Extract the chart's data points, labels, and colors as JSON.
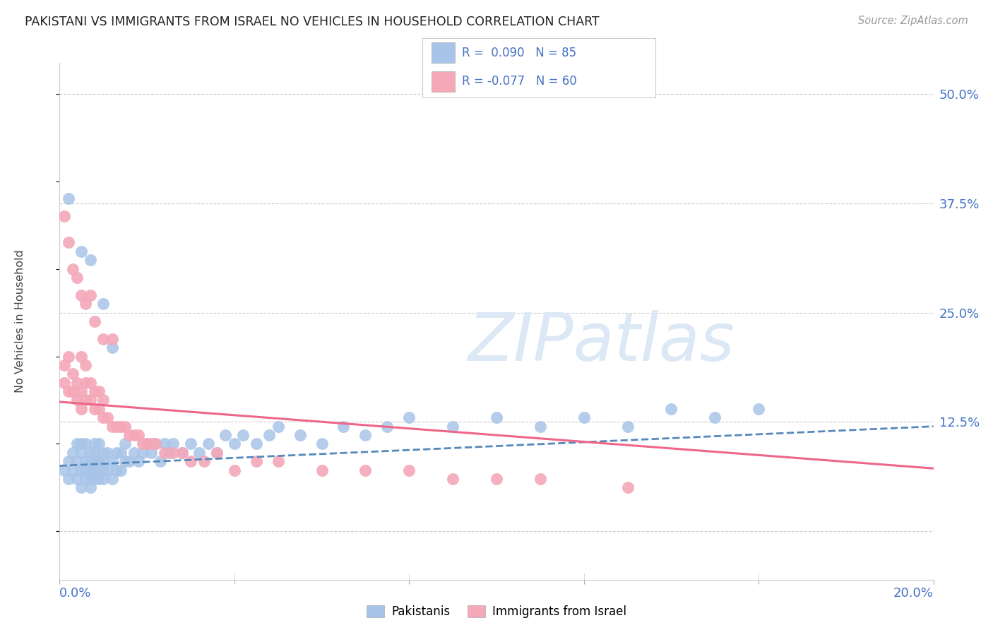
{
  "title": "PAKISTANI VS IMMIGRANTS FROM ISRAEL NO VEHICLES IN HOUSEHOLD CORRELATION CHART",
  "source": "Source: ZipAtlas.com",
  "ylabel": "No Vehicles in Household",
  "ytick_labels": [
    "",
    "12.5%",
    "25.0%",
    "37.5%",
    "50.0%"
  ],
  "ytick_values": [
    0.0,
    0.125,
    0.25,
    0.375,
    0.5
  ],
  "xmin": 0.0,
  "xmax": 0.2,
  "ymin": -0.055,
  "ymax": 0.535,
  "blue_color": "#a8c4e8",
  "pink_color": "#f4a8b8",
  "trendline_blue_color": "#5588bb",
  "trendline_pink_color": "#ee6688",
  "watermark_color": "#dce8f5",
  "grid_color": "#cccccc",
  "title_color": "#222222",
  "axis_label_color": "#4472c4",
  "legend_text_color": "#4472c4",
  "blue_scatter_x": [
    0.001,
    0.002,
    0.002,
    0.003,
    0.003,
    0.004,
    0.004,
    0.004,
    0.005,
    0.005,
    0.005,
    0.005,
    0.006,
    0.006,
    0.006,
    0.006,
    0.007,
    0.007,
    0.007,
    0.007,
    0.007,
    0.008,
    0.008,
    0.008,
    0.008,
    0.008,
    0.009,
    0.009,
    0.009,
    0.009,
    0.01,
    0.01,
    0.01,
    0.01,
    0.011,
    0.011,
    0.012,
    0.012,
    0.013,
    0.013,
    0.014,
    0.014,
    0.015,
    0.015,
    0.016,
    0.017,
    0.018,
    0.019,
    0.02,
    0.021,
    0.022,
    0.023,
    0.024,
    0.025,
    0.026,
    0.028,
    0.03,
    0.032,
    0.034,
    0.036,
    0.038,
    0.04,
    0.042,
    0.045,
    0.048,
    0.05,
    0.055,
    0.06,
    0.065,
    0.07,
    0.075,
    0.08,
    0.09,
    0.1,
    0.11,
    0.12,
    0.13,
    0.14,
    0.15,
    0.16,
    0.002,
    0.005,
    0.007,
    0.01,
    0.012
  ],
  "blue_scatter_y": [
    0.07,
    0.06,
    0.08,
    0.07,
    0.09,
    0.06,
    0.08,
    0.1,
    0.05,
    0.07,
    0.09,
    0.1,
    0.06,
    0.07,
    0.08,
    0.1,
    0.05,
    0.06,
    0.07,
    0.08,
    0.09,
    0.06,
    0.07,
    0.08,
    0.09,
    0.1,
    0.06,
    0.07,
    0.08,
    0.1,
    0.06,
    0.07,
    0.08,
    0.09,
    0.07,
    0.09,
    0.06,
    0.08,
    0.07,
    0.09,
    0.07,
    0.09,
    0.08,
    0.1,
    0.08,
    0.09,
    0.08,
    0.09,
    0.1,
    0.09,
    0.1,
    0.08,
    0.1,
    0.09,
    0.1,
    0.09,
    0.1,
    0.09,
    0.1,
    0.09,
    0.11,
    0.1,
    0.11,
    0.1,
    0.11,
    0.12,
    0.11,
    0.1,
    0.12,
    0.11,
    0.12,
    0.13,
    0.12,
    0.13,
    0.12,
    0.13,
    0.12,
    0.14,
    0.13,
    0.14,
    0.38,
    0.32,
    0.31,
    0.26,
    0.21
  ],
  "pink_scatter_x": [
    0.001,
    0.001,
    0.002,
    0.002,
    0.003,
    0.003,
    0.004,
    0.004,
    0.005,
    0.005,
    0.005,
    0.006,
    0.006,
    0.006,
    0.007,
    0.007,
    0.008,
    0.008,
    0.009,
    0.009,
    0.01,
    0.01,
    0.011,
    0.012,
    0.013,
    0.014,
    0.015,
    0.016,
    0.017,
    0.018,
    0.019,
    0.02,
    0.021,
    0.022,
    0.024,
    0.026,
    0.028,
    0.03,
    0.033,
    0.036,
    0.04,
    0.045,
    0.05,
    0.06,
    0.07,
    0.08,
    0.09,
    0.1,
    0.11,
    0.13,
    0.001,
    0.002,
    0.003,
    0.004,
    0.005,
    0.006,
    0.007,
    0.008,
    0.01,
    0.012
  ],
  "pink_scatter_y": [
    0.17,
    0.19,
    0.16,
    0.2,
    0.16,
    0.18,
    0.15,
    0.17,
    0.14,
    0.16,
    0.2,
    0.15,
    0.17,
    0.19,
    0.15,
    0.17,
    0.14,
    0.16,
    0.14,
    0.16,
    0.13,
    0.15,
    0.13,
    0.12,
    0.12,
    0.12,
    0.12,
    0.11,
    0.11,
    0.11,
    0.1,
    0.1,
    0.1,
    0.1,
    0.09,
    0.09,
    0.09,
    0.08,
    0.08,
    0.09,
    0.07,
    0.08,
    0.08,
    0.07,
    0.07,
    0.07,
    0.06,
    0.06,
    0.06,
    0.05,
    0.36,
    0.33,
    0.3,
    0.29,
    0.27,
    0.26,
    0.27,
    0.24,
    0.22,
    0.22
  ],
  "blue_trend_x": [
    0.0,
    0.2
  ],
  "blue_trend_y": [
    0.075,
    0.12
  ],
  "pink_trend_x": [
    0.0,
    0.2
  ],
  "pink_trend_y": [
    0.148,
    0.072
  ]
}
